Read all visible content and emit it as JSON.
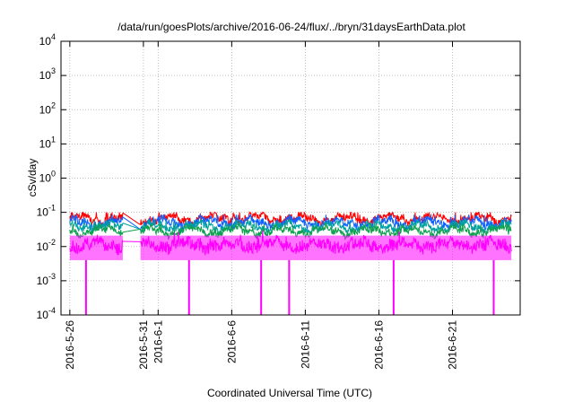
{
  "chart_data": {
    "type": "line",
    "title": "/data/run/goesPlots/archive/2016-06-24/flux/../bryn/31daysEarthData.plot",
    "xlabel": "Coordinated Universal Time (UTC)",
    "ylabel": "cSv/day",
    "y_scale": "log",
    "ylim": [
      0.0001,
      10000
    ],
    "y_ticks": [
      {
        "value": 0.0001,
        "base": "10",
        "exp": "-4"
      },
      {
        "value": 0.001,
        "base": "10",
        "exp": "-3"
      },
      {
        "value": 0.01,
        "base": "10",
        "exp": "-2"
      },
      {
        "value": 0.1,
        "base": "10",
        "exp": "-1"
      },
      {
        "value": 1,
        "base": "10",
        "exp": "0"
      },
      {
        "value": 10,
        "base": "10",
        "exp": "1"
      },
      {
        "value": 100,
        "base": "10",
        "exp": "2"
      },
      {
        "value": 1000,
        "base": "10",
        "exp": "3"
      },
      {
        "value": 10000,
        "base": "10",
        "exp": "4"
      }
    ],
    "x_range_days": [
      -0.6,
      30.6
    ],
    "x_ticks": [
      {
        "day": 0,
        "label": "2016-5-26"
      },
      {
        "day": 5,
        "label": "2016-5-31"
      },
      {
        "day": 6,
        "label": "2016-6-1"
      },
      {
        "day": 11,
        "label": "2016-6-6"
      },
      {
        "day": 16,
        "label": "2016-6-11"
      },
      {
        "day": 21,
        "label": "2016-6-16"
      },
      {
        "day": 26,
        "label": "2016-6-21"
      }
    ],
    "grid": true,
    "data_gap_days": [
      3.6,
      4.8
    ],
    "dropouts_days": [
      1.1,
      8.1,
      13.0,
      14.9,
      22.0,
      28.8
    ],
    "series": [
      {
        "color": "#ff0000",
        "base": 0.065,
        "max": 0.1,
        "spread": 0.22
      },
      {
        "color": "#1060ff",
        "base": 0.05,
        "max": 0.085,
        "spread": 0.22
      },
      {
        "color": "#00a0a0",
        "base": 0.038,
        "max": 0.06,
        "spread": 0.2
      },
      {
        "color": "#10a050",
        "base": 0.028,
        "max": 0.045,
        "spread": 0.2
      },
      {
        "color": "#ff00ff",
        "base": 0.011,
        "max": 0.03,
        "spread": 0.35
      }
    ]
  }
}
